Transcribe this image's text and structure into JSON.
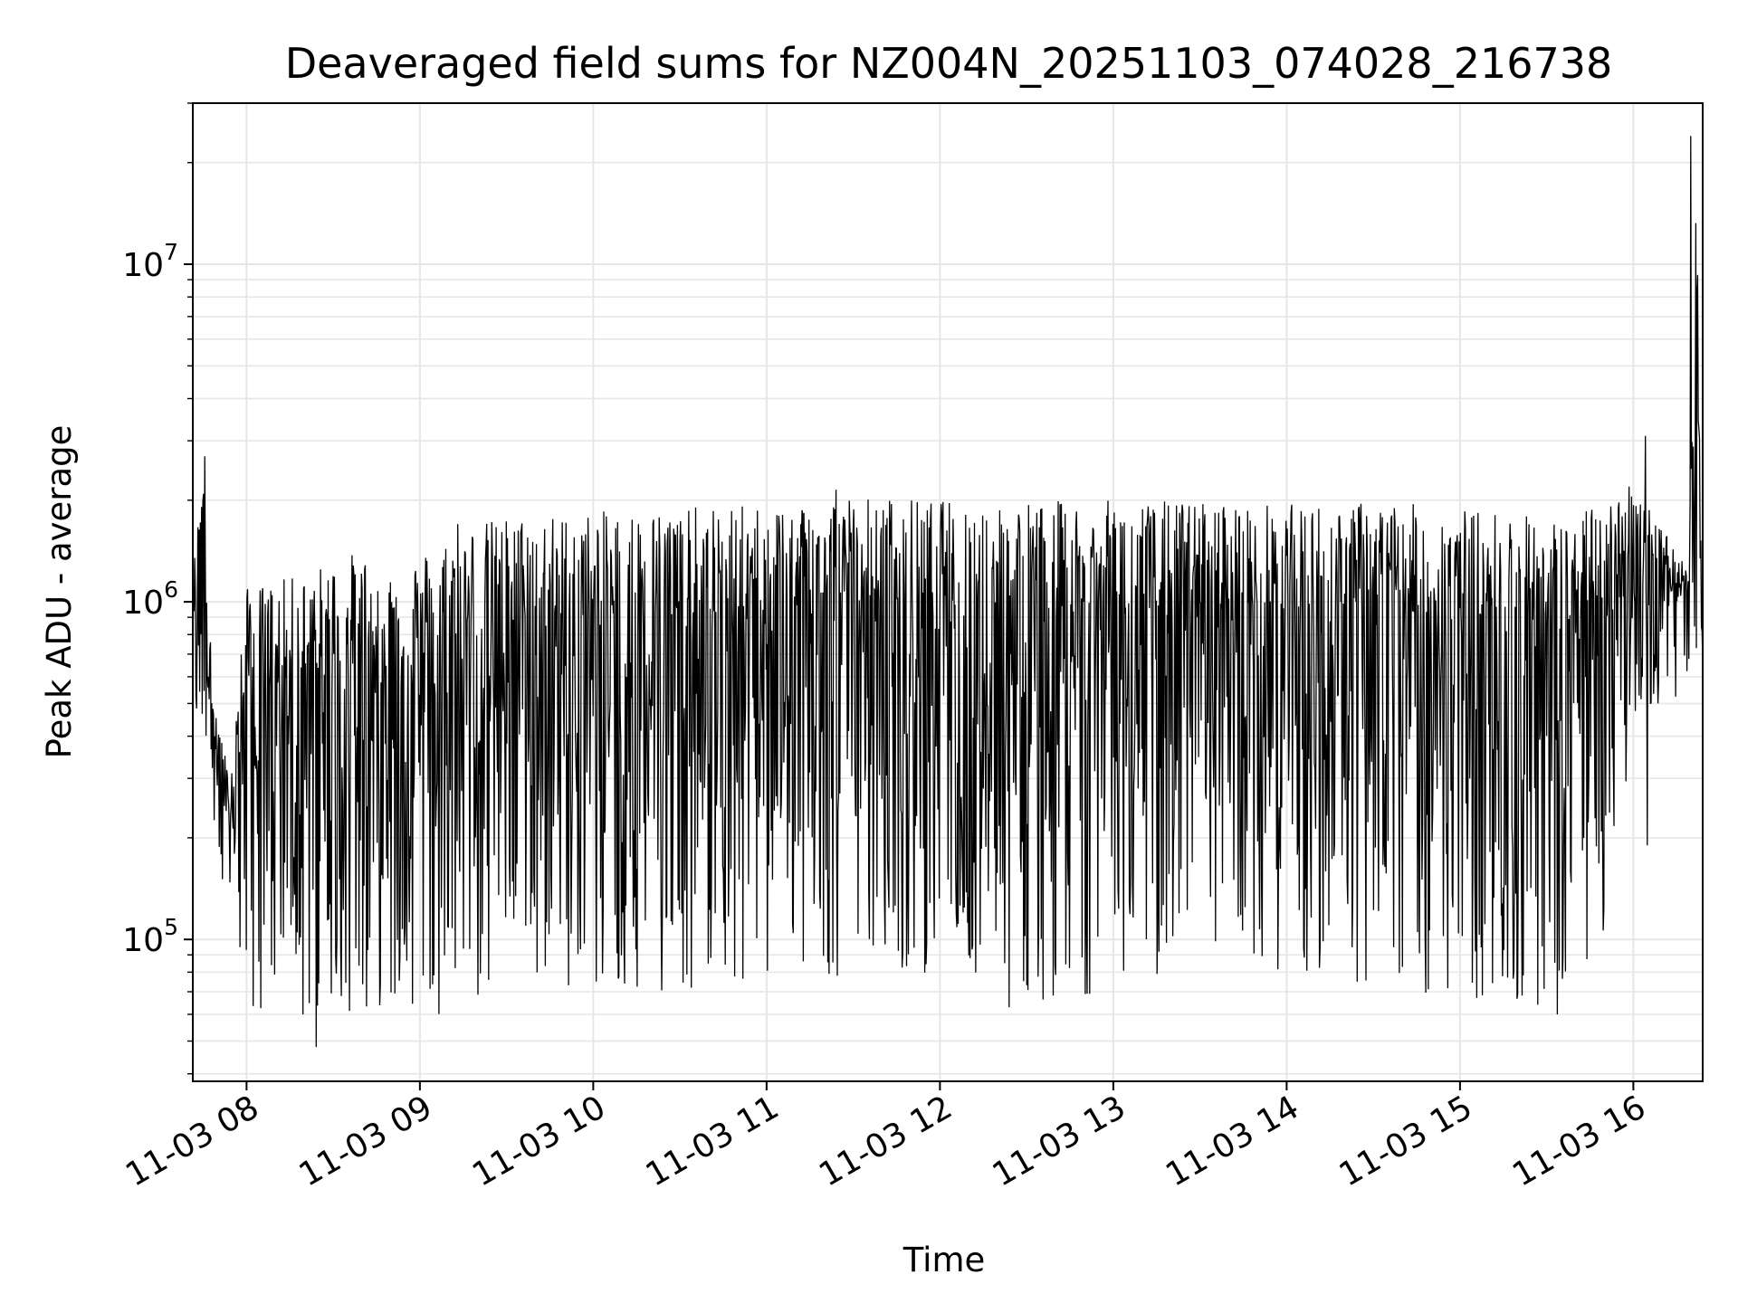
{
  "chart_data": {
    "type": "line",
    "title": "Deaveraged field sums for NZ004N_20251103_074028_216738",
    "xlabel": "Time",
    "ylabel": "Peak ADU - average",
    "yscale": "log",
    "ylim": [
      38000,
      30000000
    ],
    "xlim_hours": [
      7.69,
      16.4
    ],
    "x_tick_labels": [
      "11-03 08",
      "11-03 09",
      "11-03 10",
      "11-03 11",
      "11-03 12",
      "11-03 13",
      "11-03 14",
      "11-03 15",
      "11-03 16"
    ],
    "x_tick_hours": [
      8,
      9,
      10,
      11,
      12,
      13,
      14,
      15,
      16
    ],
    "y_tick_labels": [
      {
        "base": "10",
        "exp": "5",
        "value": 100000
      },
      {
        "base": "10",
        "exp": "6",
        "value": 1000000
      },
      {
        "base": "10",
        "exp": "7",
        "value": 10000000
      }
    ],
    "grid": true,
    "line_color": "#000000",
    "series": [
      {
        "name": "Peak ADU - average",
        "envelope_hours": [
          7.69,
          7.75,
          7.8,
          7.9,
          8.0,
          8.3,
          8.6,
          8.9,
          9.1,
          9.3,
          9.5,
          9.7,
          10.0,
          10.5,
          11.0,
          11.4,
          12.0,
          12.5,
          13.0,
          13.5,
          14.0,
          14.5,
          15.0,
          15.3,
          15.6,
          15.85,
          16.0,
          16.2,
          16.32,
          16.36,
          16.4
        ],
        "envelope_high": [
          1200000,
          2700000,
          600000,
          300000,
          1100000,
          1200000,
          1400000,
          1300000,
          1500000,
          1700000,
          1800000,
          1800000,
          1850000,
          1900000,
          1950000,
          2100000,
          2000000,
          2000000,
          2000000,
          2000000,
          1950000,
          2000000,
          1900000,
          1850000,
          1750000,
          2000000,
          2300000,
          1600000,
          1200000,
          24000000,
          800000
        ],
        "envelope_low": [
          450000,
          400000,
          200000,
          80000,
          62000,
          55000,
          60000,
          65000,
          60000,
          62000,
          70000,
          75000,
          70000,
          70000,
          75000,
          75000,
          80000,
          65000,
          70000,
          75000,
          75000,
          70000,
          65000,
          62000,
          58000,
          100000,
          450000,
          500000,
          550000,
          550000,
          550000
        ],
        "spikes": [
          {
            "hour": 7.76,
            "value": 2700000
          },
          {
            "hour": 8.4,
            "value": 48000
          },
          {
            "hour": 9.22,
            "value": 1700000
          },
          {
            "hour": 11.4,
            "value": 2150000
          },
          {
            "hour": 12.4,
            "value": 63000
          },
          {
            "hour": 15.56,
            "value": 60000
          },
          {
            "hour": 16.07,
            "value": 3100000
          },
          {
            "hour": 16.08,
            "value": 190000
          },
          {
            "hour": 16.33,
            "value": 24000000
          }
        ]
      }
    ]
  }
}
